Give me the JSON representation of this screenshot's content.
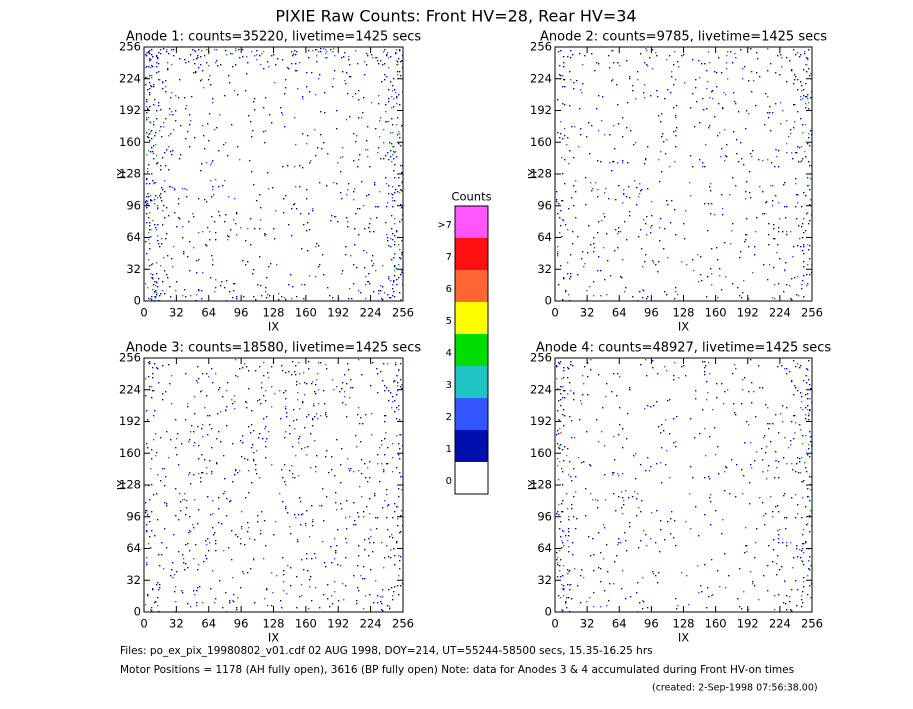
{
  "title": "PIXIE Raw Counts:  Front HV=28, Rear HV=34",
  "chart_data": [
    {
      "type": "heatmap",
      "title": "Anode 1: counts=35220, livetime=1425 secs",
      "xlabel": "IX",
      "ylabel": "IY",
      "xlim": [
        0,
        256
      ],
      "ylim": [
        0,
        256
      ],
      "xticks": [
        0,
        32,
        64,
        96,
        128,
        160,
        192,
        224,
        256
      ],
      "yticks": [
        0,
        32,
        64,
        96,
        128,
        160,
        192,
        224,
        256
      ]
    },
    {
      "type": "heatmap",
      "title": "Anode 2: counts=9785, livetime=1425 secs",
      "xlabel": "IX",
      "ylabel": "IY",
      "xlim": [
        0,
        256
      ],
      "ylim": [
        0,
        256
      ],
      "xticks": [
        0,
        32,
        64,
        96,
        128,
        160,
        192,
        224,
        256
      ],
      "yticks": [
        0,
        32,
        64,
        96,
        128,
        160,
        192,
        224,
        256
      ]
    },
    {
      "type": "heatmap",
      "title": "Anode 3: counts=18580, livetime=1425 secs",
      "xlabel": "IX",
      "ylabel": "IY",
      "xlim": [
        0,
        256
      ],
      "ylim": [
        0,
        256
      ],
      "xticks": [
        0,
        32,
        64,
        96,
        128,
        160,
        192,
        224,
        256
      ],
      "yticks": [
        0,
        32,
        64,
        96,
        128,
        160,
        192,
        224,
        256
      ]
    },
    {
      "type": "heatmap",
      "title": "Anode 4: counts=48927, livetime=1425 secs",
      "xlabel": "IX",
      "ylabel": "IY",
      "xlim": [
        0,
        256
      ],
      "ylim": [
        0,
        256
      ],
      "xticks": [
        0,
        32,
        64,
        96,
        128,
        160,
        192,
        224,
        256
      ],
      "yticks": [
        0,
        32,
        64,
        96,
        128,
        160,
        192,
        224,
        256
      ]
    }
  ],
  "colorbar": {
    "title": "Counts",
    "levels": [
      {
        "label": ">7",
        "color": "#ff55ff"
      },
      {
        "label": "7",
        "color": "#ff1010"
      },
      {
        "label": "6",
        "color": "#ff6633"
      },
      {
        "label": "5",
        "color": "#ffff00"
      },
      {
        "label": "4",
        "color": "#00dd00"
      },
      {
        "label": "3",
        "color": "#20c4c4"
      },
      {
        "label": "2",
        "color": "#3355ff"
      },
      {
        "label": "1",
        "color": "#0010b0"
      },
      {
        "label": "0",
        "color": "#ffffff"
      }
    ]
  },
  "footer": [
    "Files: po_ex_pix_19980802_v01.cdf    02 AUG 1998, DOY=214, UT=55244-58500 secs, 15.35-16.25 hrs",
    "Motor Positions = 1178 (AH fully open), 3616 (BP fully open)    Note: data for Anodes 3 & 4 accumulated during Front HV-on times",
    "(created:  2-Sep-1998 07:56:38.00)"
  ]
}
